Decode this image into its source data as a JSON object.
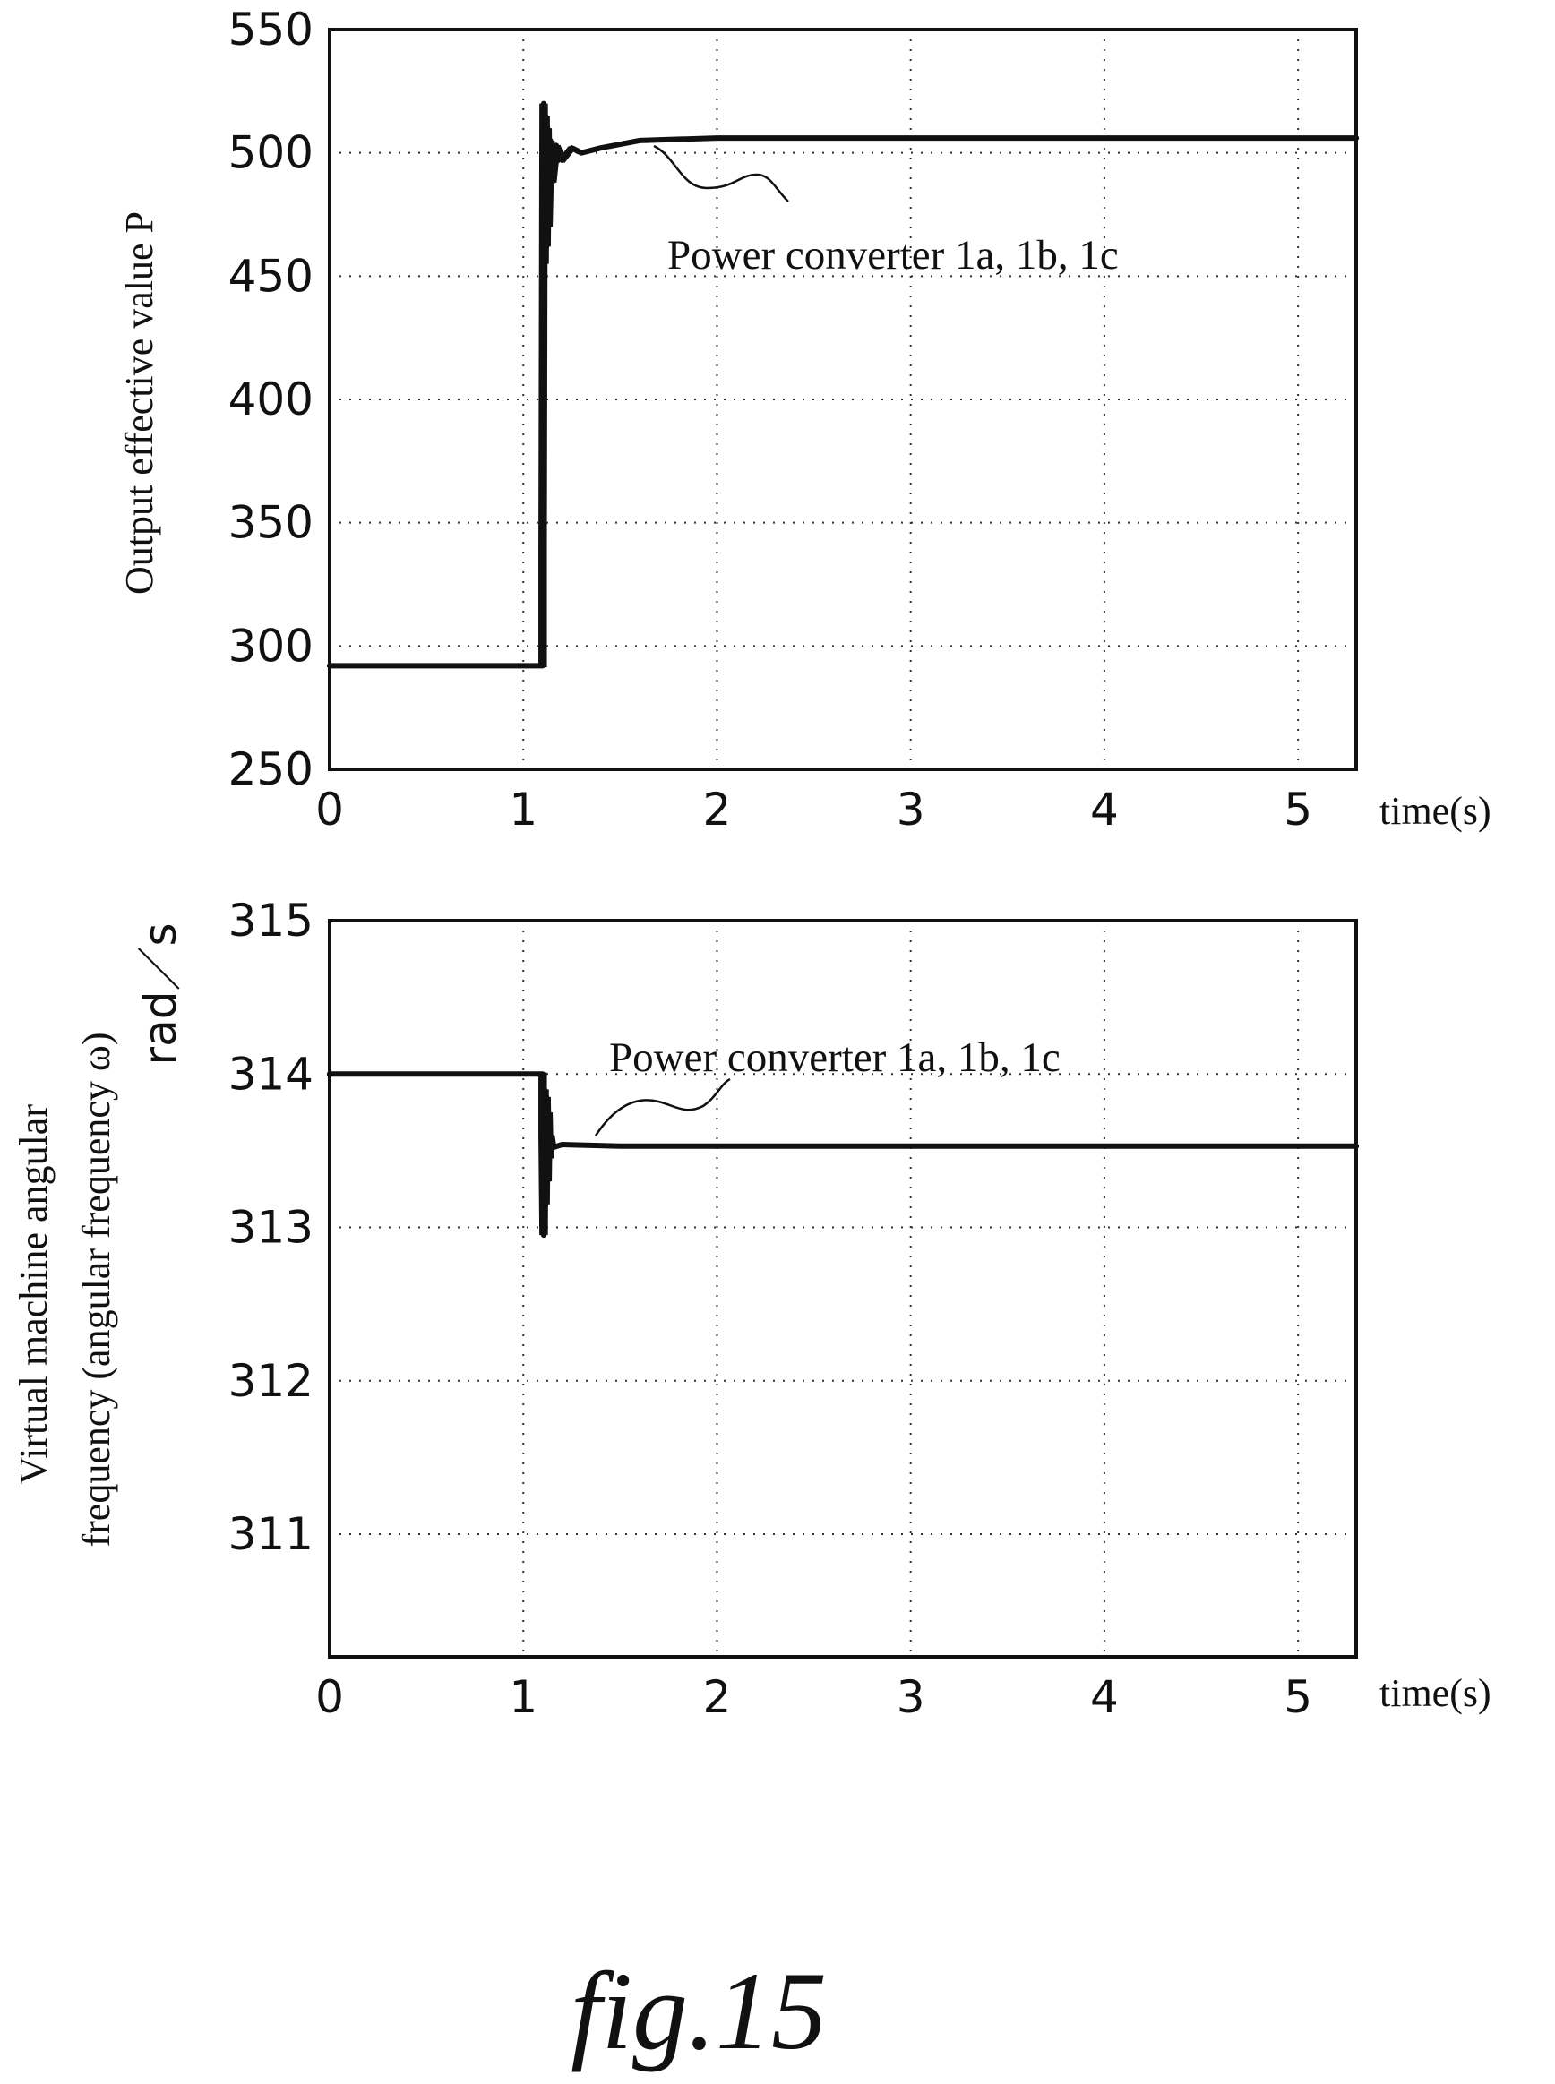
{
  "chart_data": [
    {
      "type": "line",
      "title": "",
      "xlabel": "time(s)",
      "ylabel": "Output effective value P",
      "xlim": [
        0,
        5.3
      ],
      "ylim": [
        250,
        550
      ],
      "xticks": [
        "0",
        "1",
        "2",
        "3",
        "4",
        "5"
      ],
      "yticks": [
        "250",
        "300",
        "350",
        "400",
        "450",
        "500",
        "550"
      ],
      "grid": true,
      "annotation": "Power converter 1a, 1b, 1c",
      "series": [
        {
          "x": [
            0,
            1.1,
            1.1,
            1.105,
            1.11,
            1.115,
            1.12,
            1.125,
            1.13,
            1.14,
            1.15,
            1.17,
            1.2,
            1.25,
            1.3,
            1.4,
            1.6,
            2.0,
            3.0,
            4.0,
            5.3
          ],
          "y": [
            292,
            292,
            340,
            520,
            455,
            515,
            462,
            510,
            470,
            505,
            488,
            503,
            497,
            502,
            500,
            502,
            505,
            506,
            506,
            506,
            506
          ]
        }
      ]
    },
    {
      "type": "line",
      "title": "",
      "xlabel": "time(s)",
      "ylabel": "Virtual machine angular frequency (angular frequency ω)",
      "yunit": "rad／s",
      "xlim": [
        0,
        5.3
      ],
      "ylim": [
        310.2,
        315
      ],
      "xticks": [
        "0",
        "1",
        "2",
        "3",
        "4",
        "5"
      ],
      "yticks": [
        "311",
        "312",
        "313",
        "314",
        "315"
      ],
      "grid": true,
      "annotation": "Power converter 1a, 1b, 1c",
      "series": [
        {
          "x": [
            0,
            1.1,
            1.1,
            1.105,
            1.11,
            1.115,
            1.12,
            1.125,
            1.13,
            1.135,
            1.14,
            1.15,
            1.2,
            1.5,
            2.0,
            3.0,
            4.0,
            5.3
          ],
          "y": [
            314.0,
            314.0,
            313.6,
            312.95,
            313.9,
            313.15,
            313.85,
            313.3,
            313.75,
            313.45,
            313.6,
            313.52,
            313.54,
            313.53,
            313.53,
            313.53,
            313.53,
            313.53
          ]
        }
      ]
    }
  ],
  "figure_caption": "fig.15"
}
